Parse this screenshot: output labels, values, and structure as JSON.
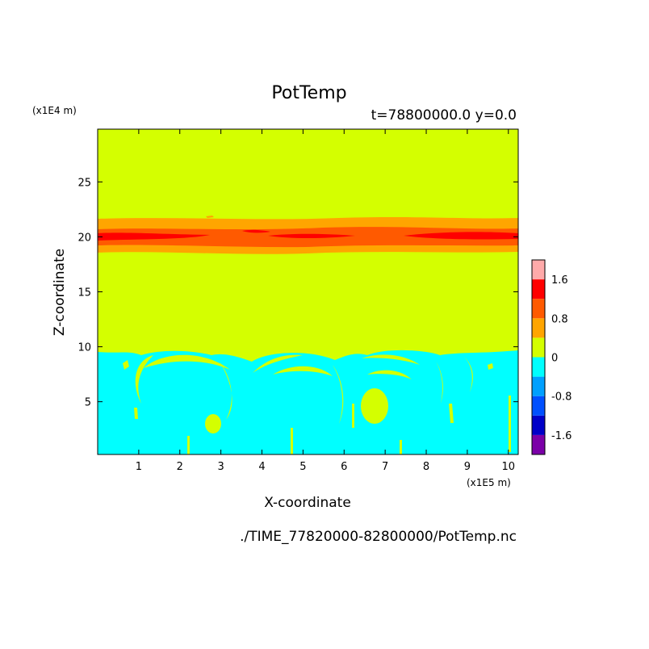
{
  "chart_data": {
    "type": "heatmap",
    "title": "PotTemp",
    "subtitle": "t=78800000.0 y=0.0",
    "xlabel": "X-coordinate",
    "ylabel": "Z-coordinate",
    "x_unit": "(x1E5 m)",
    "y_unit": "(x1E4 m)",
    "footer": "./TIME_77820000-82800000/PotTemp.nc",
    "xlim": [
      0,
      10.24
    ],
    "ylim": [
      0.2,
      29.8
    ],
    "xticks": [
      1,
      2,
      3,
      4,
      5,
      6,
      7,
      8,
      9,
      10
    ],
    "yticks": [
      5,
      10,
      15,
      20,
      25
    ],
    "colorbar": {
      "levels": [
        -2.0,
        -1.6,
        -1.2,
        -0.8,
        -0.4,
        0,
        0.4,
        0.8,
        1.2,
        1.6,
        2.0
      ],
      "colors": [
        "#7b00a8",
        "#0000c8",
        "#0050ff",
        "#00a0ff",
        "#00ffff",
        "#d4ff00",
        "#ffa500",
        "#ff5a00",
        "#ff0000",
        "#ffaaaa"
      ],
      "tick_labels": [
        {
          "value": 1.6,
          "label": "1.6"
        },
        {
          "value": 0.8,
          "label": "0.8"
        },
        {
          "value": 0,
          "label": "0"
        },
        {
          "value": -0.8,
          "label": "-0.8"
        },
        {
          "value": -1.6,
          "label": "-1.6"
        }
      ]
    },
    "field_regions": [
      {
        "range": "-0.4 to 0",
        "z_from": 0.2,
        "z_to": 9.5,
        "note": "lower layer with rolling bubble structures"
      },
      {
        "range": "0 to 0.4",
        "z_from": 9.5,
        "z_to": 18.5
      },
      {
        "range": "0.4 to 0.8",
        "z_from": 18.5,
        "z_to": 21.6
      },
      {
        "range": "0.8 to 1.2",
        "z_from": 19.3,
        "z_to": 21.0
      },
      {
        "range": "1.2 to 1.6",
        "z_from": 19.8,
        "z_to": 20.4
      },
      {
        "range": "0 to 0.4",
        "z_from": 21.6,
        "z_to": 29.8
      }
    ]
  }
}
